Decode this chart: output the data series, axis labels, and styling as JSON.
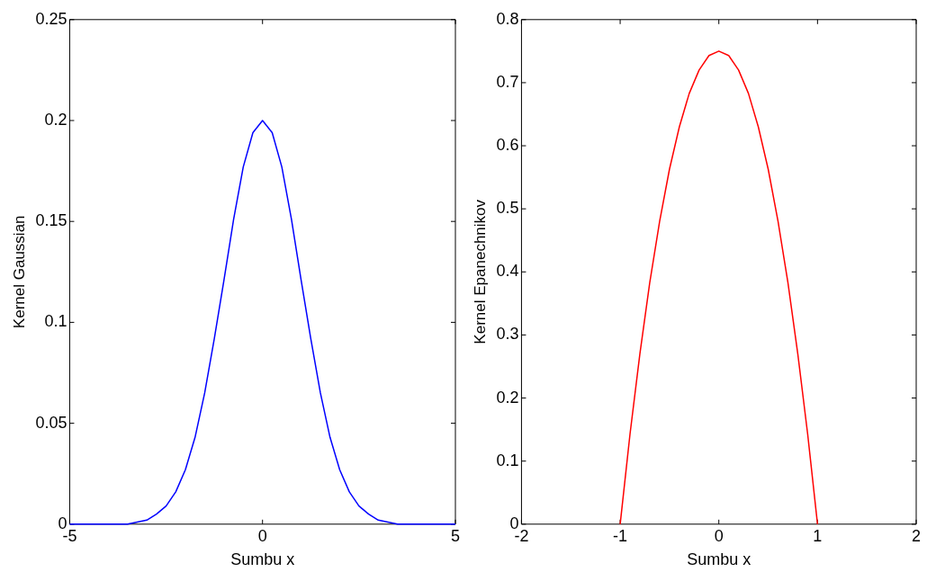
{
  "chart_data": [
    {
      "type": "line",
      "xlabel": "Sumbu x",
      "ylabel": "Kernel Gaussian",
      "color": "#0000ff",
      "marker": "none",
      "xlim": [
        -5,
        5
      ],
      "ylim": [
        0,
        0.25
      ],
      "xticks": [
        -5,
        0,
        5
      ],
      "yticks": [
        0,
        0.05,
        0.1,
        0.15,
        0.2,
        0.25
      ],
      "x": [
        -5,
        -4.75,
        -4.5,
        -4.25,
        -4,
        -3.75,
        -3.5,
        -3.25,
        -3,
        -2.75,
        -2.5,
        -2.25,
        -2,
        -1.75,
        -1.5,
        -1.25,
        -1,
        -0.75,
        -0.5,
        -0.25,
        0,
        0.25,
        0.5,
        0.75,
        1,
        1.25,
        1.5,
        1.75,
        2,
        2.25,
        2.5,
        2.75,
        3,
        3.25,
        3.5,
        3.75,
        4,
        4.25,
        4.5,
        4.75,
        5
      ],
      "values": [
        0,
        0,
        0,
        0,
        0,
        0,
        0,
        0.001,
        0.002,
        0.005,
        0.009,
        0.016,
        0.027,
        0.043,
        0.065,
        0.092,
        0.121,
        0.151,
        0.177,
        0.194,
        0.2,
        0.194,
        0.177,
        0.151,
        0.121,
        0.092,
        0.065,
        0.043,
        0.027,
        0.016,
        0.009,
        0.005,
        0.002,
        0.001,
        0,
        0,
        0,
        0,
        0,
        0,
        0
      ]
    },
    {
      "type": "line",
      "xlabel": "Sumbu x",
      "ylabel": "Kernel Epanechnikov",
      "color": "#ff0000",
      "marker": "none",
      "xlim": [
        -2,
        2
      ],
      "ylim": [
        0,
        0.8
      ],
      "xticks": [
        -2,
        -1,
        0,
        1,
        2
      ],
      "yticks": [
        0,
        0.1,
        0.2,
        0.3,
        0.4,
        0.5,
        0.6,
        0.7,
        0.8
      ],
      "x": [
        -1,
        -0.9,
        -0.8,
        -0.7,
        -0.6,
        -0.5,
        -0.4,
        -0.3,
        -0.2,
        -0.1,
        0,
        0.1,
        0.2,
        0.3,
        0.4,
        0.5,
        0.6,
        0.7,
        0.8,
        0.9,
        1
      ],
      "values": [
        0,
        0.143,
        0.27,
        0.383,
        0.48,
        0.563,
        0.63,
        0.683,
        0.72,
        0.743,
        0.75,
        0.743,
        0.72,
        0.683,
        0.63,
        0.563,
        0.48,
        0.383,
        0.27,
        0.143,
        0
      ]
    }
  ]
}
